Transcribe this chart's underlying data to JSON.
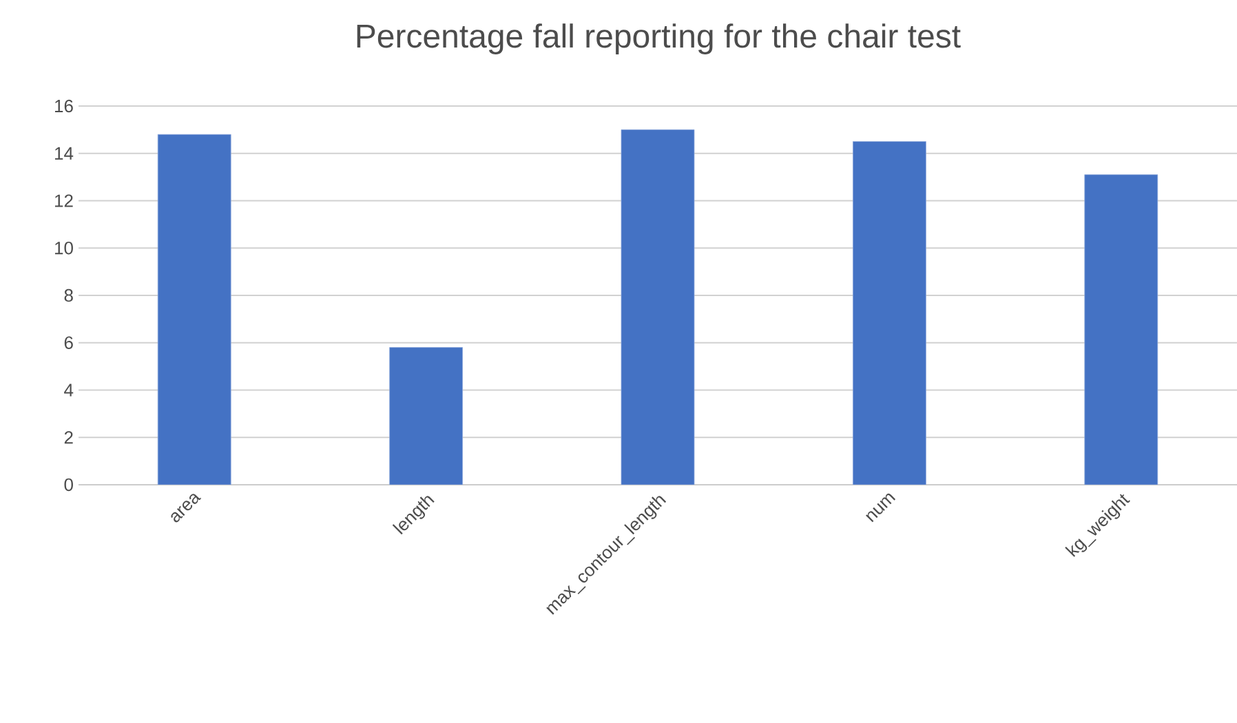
{
  "chart_data": {
    "type": "bar",
    "title": "Percentage fall reporting for the chair test",
    "categories": [
      "area",
      "length",
      "max_contour_length",
      "num",
      "kg_weight"
    ],
    "values": [
      14.8,
      5.8,
      15.0,
      14.5,
      13.1
    ],
    "color": "#4472c4",
    "ylim": [
      0,
      16
    ],
    "yticks": [
      0,
      2,
      4,
      6,
      8,
      10,
      12,
      14,
      16
    ],
    "grid": "y"
  }
}
